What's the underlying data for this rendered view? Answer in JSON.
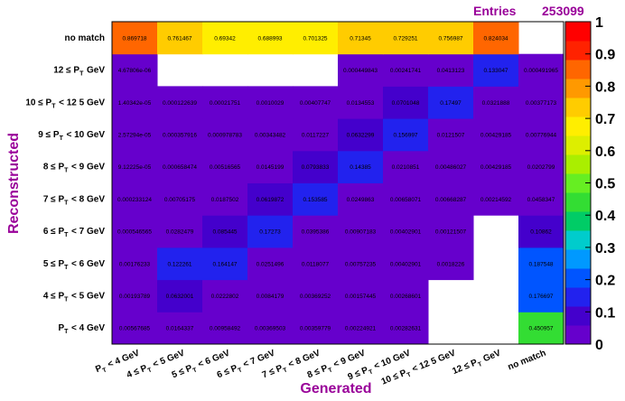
{
  "chart_data": {
    "type": "heatmap",
    "xlabel": "Generated",
    "ylabel": "Reconstructed",
    "stats": {
      "label": "Entries",
      "value": "253099"
    },
    "x_categories": [
      "P_T < 4 GeV",
      "4 ≤ P_T < 5 GeV",
      "5 ≤ P_T < 6 GeV",
      "6 ≤ P_T < 7 GeV",
      "7 ≤ P_T < 8 GeV",
      "8 ≤ P_T < 9 GeV",
      "9 ≤ P_T < 10 GeV",
      "10 ≤ P_T < 12 5 GeV",
      "12 ≤ P_T GeV",
      "no match"
    ],
    "y_categories": [
      "P_T < 4 GeV",
      "4 ≤ P_T < 5 GeV",
      "5 ≤ P_T < 6 GeV",
      "6 ≤ P_T < 7 GeV",
      "7 ≤ P_T < 8 GeV",
      "8 ≤ P_T < 9 GeV",
      "9 ≤ P_T < 10 GeV",
      "10 ≤ P_T < 12 5 GeV",
      "12 ≤ P_T GeV",
      "no match"
    ],
    "cells": [
      [
        "0.00567685",
        "0.0164337",
        "0.00958492",
        "0.00369503",
        "0.00359779",
        "0.00224921",
        "0.00282631",
        null,
        null,
        "0.450957"
      ],
      [
        "0.00193789",
        "0.0632001",
        "0.0222802",
        "0.0084179",
        "0.00369252",
        "0.00157445",
        "0.00268601",
        null,
        null,
        "0.176697"
      ],
      [
        "0.00176233",
        "0.122261",
        "0.164147",
        "0.0251496",
        "0.0118077",
        "0.00757235",
        "0.00402901",
        "0.0018226",
        null,
        "0.187548"
      ],
      [
        "0.000546565",
        "0.0282479",
        "0.085445",
        "0.17273",
        "0.0395386",
        "0.00907183",
        "0.00402901",
        "0.00121507",
        null,
        "0.10862"
      ],
      [
        "0.000233124",
        "0.00705175",
        "0.0187502",
        "0.0619872",
        "0.153585",
        "0.0249863",
        "0.00658071",
        "0.00668287",
        "0.00214592",
        "0.0458347"
      ],
      [
        "9.12225e-05",
        "0.000658474",
        "0.00516565",
        "0.0145199",
        "0.0793833",
        "0.14385",
        "0.0210851",
        "0.00486027",
        "0.00429185",
        "0.0202799"
      ],
      [
        "2.57294e-05",
        "0.000357916",
        "0.000978783",
        "0.00343482",
        "0.0117227",
        "0.0632299",
        "0.156997",
        "0.0121507",
        "0.00429185",
        "0.00776944"
      ],
      [
        "1.40342e-05",
        "0.000122639",
        "0.00021751",
        "0.0010029",
        "0.00407747",
        "0.0134553",
        "0.0701048",
        "0.17497",
        "0.0321888",
        "0.00377173"
      ],
      [
        "4.67806e-06",
        null,
        null,
        null,
        null,
        "0.000449843",
        "0.00241741",
        "0.0413123",
        "0.133047",
        "0.000491965"
      ],
      [
        "0.869718",
        "0.761467",
        "0.69342",
        "0.688993",
        "0.701325",
        "0.71345",
        "0.729251",
        "0.756987",
        "0.824034",
        null
      ]
    ],
    "zlim": [
      0,
      1
    ],
    "zticks": [
      "0",
      "0.1",
      "0.2",
      "0.3",
      "0.4",
      "0.5",
      "0.6",
      "0.7",
      "0.8",
      "0.9",
      "1"
    ],
    "palette": [
      "#6600cc",
      "#4400cc",
      "#2222ee",
      "#0055ff",
      "#0099ff",
      "#00cccc",
      "#00cc66",
      "#33dd33",
      "#66ee22",
      "#aaee00",
      "#ddee00",
      "#ffee00",
      "#ffcc00",
      "#ff9900",
      "#ff6600",
      "#ff2200",
      "#ff0000"
    ],
    "empty_color": "#ffffff",
    "title_color": "#990099"
  }
}
